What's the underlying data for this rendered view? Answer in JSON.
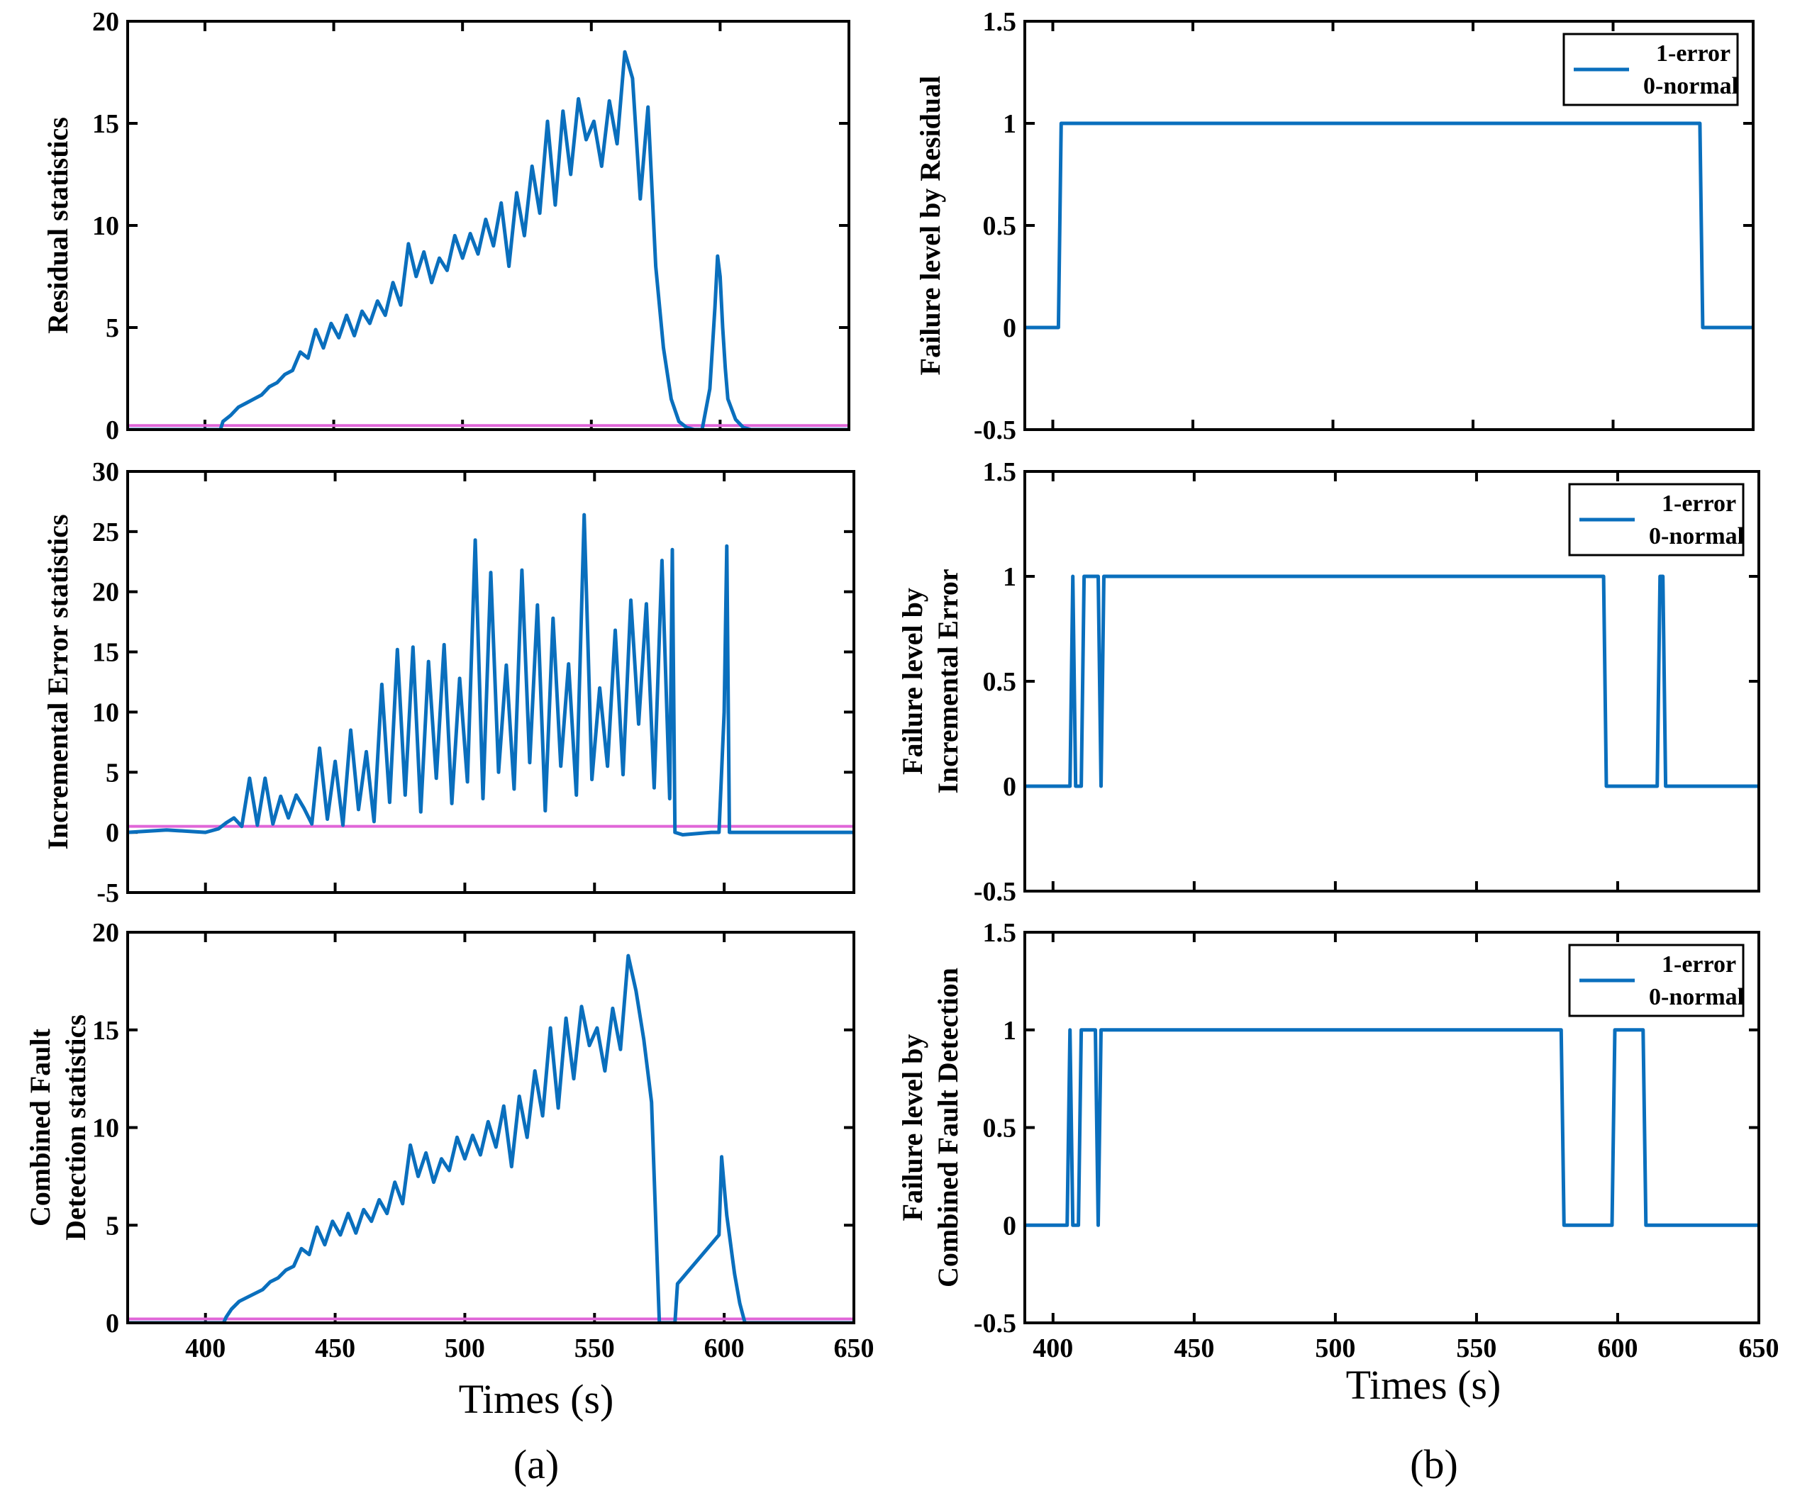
{
  "figure": {
    "xlabel_left": "Times (s)",
    "xlabel_right": "Times (s)",
    "panel_left": "(a)",
    "panel_right": "(b)"
  },
  "chart_data": [
    {
      "type": "line",
      "ylabel": [
        "Residual statistics"
      ],
      "xlim": [
        370,
        650
      ],
      "ylim": [
        0,
        20
      ],
      "xticks": [
        400,
        450,
        500,
        550,
        600
      ],
      "xtick_labels_shown": false,
      "yticks": [
        0,
        5,
        10,
        15,
        20
      ],
      "threshold": 0.2,
      "series": [
        {
          "name": "Residual statistics",
          "x": [
            370,
            406,
            407,
            410,
            413,
            416,
            419,
            422,
            425,
            428,
            431,
            434,
            437,
            440,
            443,
            446,
            449,
            452,
            455,
            458,
            461,
            464,
            467,
            470,
            473,
            476,
            479,
            482,
            485,
            488,
            491,
            494,
            497,
            500,
            503,
            506,
            509,
            512,
            515,
            518,
            521,
            524,
            527,
            530,
            533,
            536,
            539,
            542,
            545,
            548,
            551,
            554,
            557,
            560,
            563,
            566,
            569,
            572,
            575,
            578,
            581,
            584,
            587,
            590,
            593,
            596,
            598,
            599,
            600,
            601,
            602,
            603,
            606,
            609,
            612,
            650
          ],
          "y": [
            0,
            0,
            0.4,
            0.7,
            1.1,
            1.3,
            1.5,
            1.7,
            2.1,
            2.3,
            2.7,
            2.9,
            3.8,
            3.5,
            4.9,
            4.0,
            5.2,
            4.5,
            5.6,
            4.6,
            5.8,
            5.2,
            6.3,
            5.6,
            7.2,
            6.1,
            9.1,
            7.5,
            8.7,
            7.2,
            8.4,
            7.8,
            9.5,
            8.4,
            9.6,
            8.6,
            10.3,
            9.0,
            11.1,
            8.0,
            11.6,
            9.5,
            12.9,
            10.6,
            15.1,
            11.0,
            15.6,
            12.5,
            16.2,
            14.2,
            15.1,
            12.9,
            16.1,
            14.0,
            18.5,
            17.2,
            11.3,
            15.8,
            8.0,
            4.0,
            1.5,
            0.4,
            0.1,
            0,
            0,
            2.0,
            6.0,
            8.5,
            7.5,
            5.0,
            3.0,
            1.5,
            0.5,
            0.1,
            0,
            0
          ]
        }
      ]
    },
    {
      "type": "line",
      "ylabel": [
        "Incremental Error statistics"
      ],
      "xlim": [
        370,
        650
      ],
      "ylim": [
        -5,
        30
      ],
      "xticks": [
        400,
        450,
        500,
        550,
        600
      ],
      "xtick_labels_shown": false,
      "yticks": [
        -5,
        0,
        5,
        10,
        15,
        20,
        25,
        30
      ],
      "threshold": 0.5,
      "series": [
        {
          "name": "Incremental Error statistics",
          "x": [
            370,
            385,
            400,
            405,
            408,
            411,
            414,
            417,
            420,
            423,
            426,
            429,
            432,
            435,
            438,
            441,
            444,
            447,
            450,
            453,
            456,
            459,
            462,
            465,
            468,
            471,
            474,
            477,
            480,
            483,
            486,
            489,
            492,
            495,
            498,
            501,
            504,
            507,
            510,
            513,
            516,
            519,
            522,
            525,
            528,
            531,
            534,
            537,
            540,
            543,
            546,
            549,
            552,
            555,
            558,
            561,
            564,
            567,
            570,
            573,
            576,
            579,
            580,
            581,
            584,
            595,
            598,
            600,
            601,
            602,
            605,
            620,
            650
          ],
          "y": [
            0,
            0.2,
            0,
            0.3,
            0.8,
            1.2,
            0.5,
            4.5,
            0.6,
            4.5,
            0.7,
            3.0,
            1.2,
            3.1,
            2.0,
            0.7,
            7.0,
            1.1,
            5.9,
            0.6,
            8.5,
            1.9,
            6.7,
            0.9,
            12.3,
            2.5,
            15.2,
            3.1,
            15.4,
            1.7,
            14.2,
            4.5,
            15.6,
            2.4,
            12.8,
            4.2,
            24.3,
            2.8,
            21.6,
            5.0,
            13.9,
            3.6,
            21.8,
            5.8,
            18.9,
            1.8,
            17.8,
            5.5,
            14.0,
            3.1,
            26.4,
            4.4,
            12.0,
            5.5,
            16.8,
            4.8,
            19.3,
            9.0,
            19.0,
            3.7,
            22.6,
            2.8,
            23.5,
            0,
            -0.2,
            0,
            0,
            10.0,
            23.8,
            0,
            0,
            0,
            0
          ]
        }
      ]
    },
    {
      "type": "line",
      "ylabel": [
        "Combined Fault",
        "Detection statistics"
      ],
      "xlim": [
        370,
        650
      ],
      "ylim": [
        0,
        20
      ],
      "xticks": [
        400,
        450,
        500,
        550,
        600,
        650
      ],
      "xtick_labels_shown": true,
      "yticks": [
        0,
        5,
        10,
        15,
        20
      ],
      "threshold": 0.2,
      "series": [
        {
          "name": "Combined Fault Detection statistics",
          "x": [
            370,
            407,
            408,
            410,
            413,
            416,
            419,
            422,
            425,
            428,
            431,
            434,
            437,
            440,
            443,
            446,
            449,
            452,
            455,
            458,
            461,
            464,
            467,
            470,
            473,
            476,
            479,
            482,
            485,
            488,
            491,
            494,
            497,
            500,
            503,
            506,
            509,
            512,
            515,
            518,
            521,
            524,
            527,
            530,
            533,
            536,
            539,
            542,
            545,
            548,
            551,
            554,
            557,
            560,
            563,
            566,
            569,
            572,
            575,
            578,
            580,
            581,
            582,
            598,
            599,
            600,
            601,
            602,
            603,
            604,
            606,
            608,
            611,
            612,
            650
          ],
          "y": [
            0,
            0,
            0.3,
            0.7,
            1.1,
            1.3,
            1.5,
            1.7,
            2.1,
            2.3,
            2.7,
            2.9,
            3.8,
            3.5,
            4.9,
            4.0,
            5.2,
            4.5,
            5.6,
            4.6,
            5.8,
            5.2,
            6.3,
            5.6,
            7.2,
            6.1,
            9.1,
            7.5,
            8.7,
            7.2,
            8.4,
            7.8,
            9.5,
            8.4,
            9.6,
            8.6,
            10.3,
            9.0,
            11.1,
            8.0,
            11.6,
            9.5,
            12.9,
            10.6,
            15.1,
            11.0,
            15.6,
            12.5,
            16.2,
            14.2,
            15.1,
            12.9,
            16.1,
            14.0,
            18.8,
            17.0,
            14.5,
            11.3,
            0,
            0,
            0,
            0,
            2.0,
            4.5,
            8.5,
            7.0,
            5.5,
            4.5,
            3.5,
            2.5,
            1.0,
            0,
            0,
            0,
            0
          ]
        }
      ]
    },
    {
      "type": "line",
      "ylabel": [
        "Failure level by Residual"
      ],
      "xlim": [
        390,
        650
      ],
      "ylim": [
        -0.5,
        1.5
      ],
      "xticks": [
        400,
        450,
        500,
        550,
        600
      ],
      "xtick_labels_shown": false,
      "yticks": [
        -0.5,
        0,
        0.5,
        1,
        1.5
      ],
      "legend": [
        "1-error",
        "0-normal"
      ],
      "legend_position": "top-right",
      "series": [
        {
          "name": "1-error 0-normal",
          "x": [
            390,
            402,
            403,
            631,
            632,
            650
          ],
          "y": [
            0,
            0,
            1,
            1,
            0,
            0
          ]
        }
      ]
    },
    {
      "type": "line",
      "ylabel": [
        "Failure level by",
        "Incremental Error"
      ],
      "xlim": [
        390,
        650
      ],
      "ylim": [
        -0.5,
        1.5
      ],
      "xticks": [
        400,
        450,
        500,
        550,
        600
      ],
      "xtick_labels_shown": false,
      "yticks": [
        -0.5,
        0,
        0.5,
        1,
        1.5
      ],
      "legend": [
        "1-error",
        "0-normal"
      ],
      "legend_position": "top-right",
      "series": [
        {
          "name": "1-error 0-normal",
          "x": [
            390,
            406,
            407,
            408,
            410,
            411,
            416,
            417,
            418,
            595,
            596,
            614,
            615,
            616,
            617,
            650
          ],
          "y": [
            0,
            0,
            1,
            0,
            0,
            1,
            1,
            0,
            1,
            1,
            0,
            0,
            1,
            1,
            0,
            0
          ]
        }
      ]
    },
    {
      "type": "line",
      "ylabel": [
        "Failure level by",
        "Combined Fault Detection"
      ],
      "xlim": [
        390,
        650
      ],
      "ylim": [
        -0.5,
        1.5
      ],
      "xticks": [
        400,
        450,
        500,
        550,
        600,
        650
      ],
      "xtick_labels_shown": true,
      "yticks": [
        -0.5,
        0,
        0.5,
        1,
        1.5
      ],
      "legend": [
        "1-error",
        "0-normal"
      ],
      "legend_position": "top-right",
      "series": [
        {
          "name": "1-error 0-normal",
          "x": [
            390,
            405,
            406,
            407,
            409,
            410,
            415,
            416,
            417,
            580,
            581,
            598,
            599,
            609,
            610,
            650
          ],
          "y": [
            0,
            0,
            1,
            0,
            0,
            1,
            1,
            0,
            1,
            1,
            0,
            0,
            1,
            1,
            0,
            0
          ]
        }
      ]
    }
  ]
}
